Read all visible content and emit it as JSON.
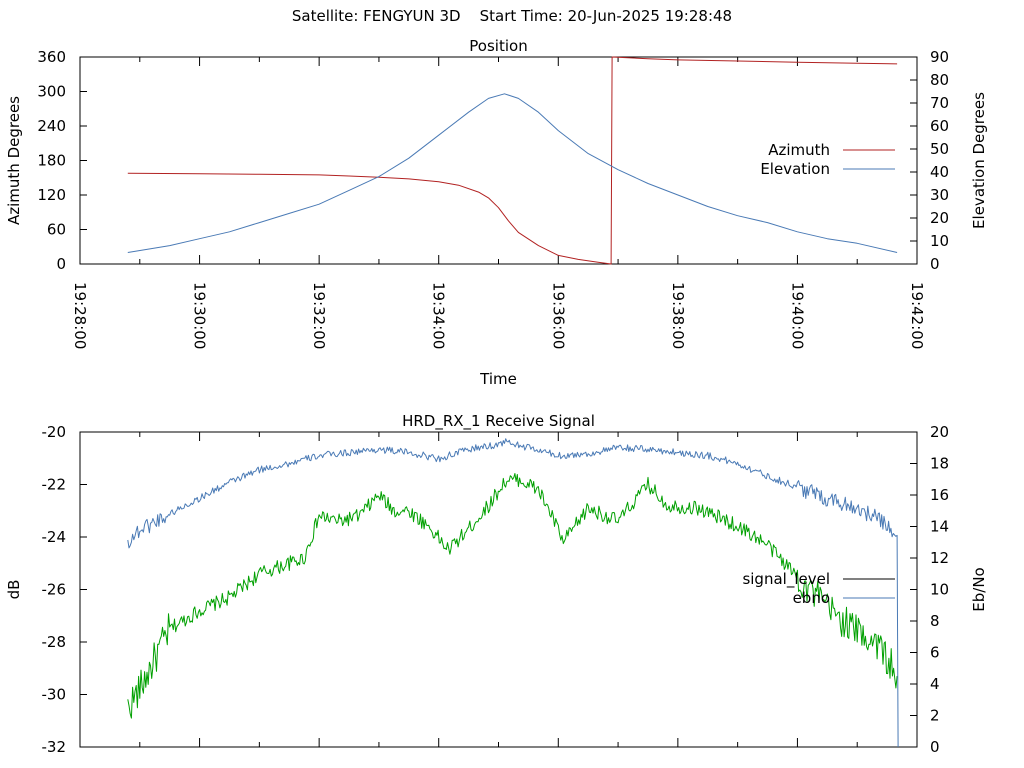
{
  "header": {
    "satellite_text": "Satellite: FENGYUN 3D",
    "start_text": "Start Time: 20-Jun-2025 19:28:48"
  },
  "chart_data": [
    {
      "type": "line",
      "title": "Position",
      "xlabel": "Time",
      "ylabel": "Azimuth Degrees",
      "y2label": "Elevation Degrees",
      "x_ticks": [
        "19:28:00",
        "19:30:00",
        "19:32:00",
        "19:34:00",
        "19:36:00",
        "19:38:00",
        "19:40:00",
        "19:42:00"
      ],
      "xlim": [
        "19:28:00",
        "19:42:00"
      ],
      "ylim": [
        0,
        360
      ],
      "y_ticks": [
        "0",
        "60",
        "120",
        "180",
        "240",
        "300",
        "360"
      ],
      "y2lim": [
        0,
        90
      ],
      "y2_ticks": [
        "0",
        "10",
        "20",
        "30",
        "40",
        "50",
        "60",
        "70",
        "80",
        "90"
      ],
      "legend_position": "right",
      "series": [
        {
          "name": "Azimuth",
          "axis": "left",
          "color": "#b22222",
          "x": [
            "19:28:48",
            "19:30:00",
            "19:31:00",
            "19:32:00",
            "19:32:30",
            "19:33:00",
            "19:33:30",
            "19:34:00",
            "19:34:20",
            "19:34:40",
            "19:34:50",
            "19:35:00",
            "19:35:10",
            "19:35:20",
            "19:35:40",
            "19:36:00",
            "19:36:20",
            "19:36:40",
            "19:36:53",
            "19:36:54",
            "19:37:30",
            "19:38:00",
            "19:39:00",
            "19:40:00",
            "19:41:00",
            "19:41:40"
          ],
          "y": [
            158,
            157,
            156,
            155,
            153,
            151,
            148,
            143,
            137,
            125,
            115,
            98,
            75,
            55,
            32,
            15,
            8,
            3,
            0,
            360,
            357,
            355,
            353,
            351,
            349,
            348
          ]
        },
        {
          "name": "Elevation",
          "axis": "right",
          "color": "#4a7ab5",
          "x": [
            "19:28:48",
            "19:29:30",
            "19:30:00",
            "19:30:30",
            "19:31:00",
            "19:31:30",
            "19:32:00",
            "19:32:30",
            "19:33:00",
            "19:33:30",
            "19:34:00",
            "19:34:30",
            "19:34:50",
            "19:35:06",
            "19:35:20",
            "19:35:40",
            "19:36:00",
            "19:36:30",
            "19:37:00",
            "19:37:30",
            "19:38:00",
            "19:38:30",
            "19:39:00",
            "19:39:30",
            "19:40:00",
            "19:40:30",
            "19:41:00",
            "19:41:40"
          ],
          "y": [
            5,
            8,
            11,
            14,
            18,
            22,
            26,
            32,
            38,
            46,
            56,
            66,
            72,
            74,
            72,
            66,
            58,
            48,
            41,
            35,
            30,
            25,
            21,
            18,
            14,
            11,
            9,
            5
          ]
        }
      ]
    },
    {
      "type": "line",
      "title": "HRD_RX_1 Receive Signal",
      "xlabel": "",
      "ylabel": "dB",
      "y2label": "Eb/No",
      "ylim": [
        -32,
        -20
      ],
      "y_ticks": [
        "-32",
        "-30",
        "-28",
        "-26",
        "-24",
        "-22",
        "-20"
      ],
      "y2lim": [
        0,
        20
      ],
      "y2_ticks": [
        "0",
        "2",
        "4",
        "6",
        "8",
        "10",
        "12",
        "14",
        "16",
        "18",
        "20"
      ],
      "legend_position": "right",
      "legend": [
        "signal_level",
        "ebno"
      ],
      "legend_colors": [
        "#000000",
        "#4a7ab5"
      ],
      "series": [
        {
          "axis": "left",
          "color": "#00a000",
          "x": [
            "19:28:48",
            "19:29:00",
            "19:29:30",
            "19:30:00",
            "19:30:30",
            "19:31:00",
            "19:31:30",
            "19:31:45",
            "19:32:00",
            "19:32:20",
            "19:32:40",
            "19:33:00",
            "19:33:15",
            "19:33:30",
            "19:33:50",
            "19:34:10",
            "19:34:30",
            "19:34:50",
            "19:35:06",
            "19:35:20",
            "19:35:40",
            "19:35:55",
            "19:36:05",
            "19:36:30",
            "19:37:00",
            "19:37:30",
            "19:37:50",
            "19:38:20",
            "19:38:50",
            "19:39:10",
            "19:39:30",
            "19:40:00",
            "19:40:30",
            "19:41:00",
            "19:41:20",
            "19:41:40"
          ],
          "y": [
            -30.5,
            -29.8,
            -27.5,
            -26.8,
            -26.3,
            -25.4,
            -25.0,
            -24.8,
            -23.2,
            -23.4,
            -23.2,
            -22.4,
            -23.0,
            -23.0,
            -23.6,
            -24.5,
            -23.7,
            -22.8,
            -21.9,
            -21.8,
            -22.2,
            -23.3,
            -24.2,
            -22.9,
            -23.4,
            -22.0,
            -22.8,
            -22.9,
            -23.4,
            -23.8,
            -24.3,
            -25.5,
            -26.7,
            -27.6,
            -28.0,
            -29.3
          ]
        },
        {
          "axis": "right",
          "color": "#4a7ab5",
          "x": [
            "19:28:48",
            "19:29:00",
            "19:29:30",
            "19:30:00",
            "19:30:30",
            "19:31:00",
            "19:31:30",
            "19:32:00",
            "19:32:30",
            "19:33:00",
            "19:33:30",
            "19:34:00",
            "19:34:30",
            "19:35:00",
            "19:35:06",
            "19:35:30",
            "19:36:00",
            "19:36:30",
            "19:37:00",
            "19:37:30",
            "19:38:00",
            "19:38:30",
            "19:39:00",
            "19:39:30",
            "19:40:00",
            "19:40:30",
            "19:41:00",
            "19:41:20",
            "19:41:35",
            "19:41:40",
            "19:41:41"
          ],
          "y": [
            13.0,
            13.8,
            14.8,
            15.8,
            16.8,
            17.6,
            18.0,
            18.5,
            18.7,
            18.9,
            18.7,
            18.3,
            18.9,
            19.2,
            19.4,
            19.0,
            18.5,
            18.6,
            19.0,
            18.9,
            18.7,
            18.5,
            18.0,
            17.2,
            16.5,
            15.8,
            15.2,
            14.5,
            13.8,
            13.0,
            0
          ]
        }
      ]
    }
  ]
}
